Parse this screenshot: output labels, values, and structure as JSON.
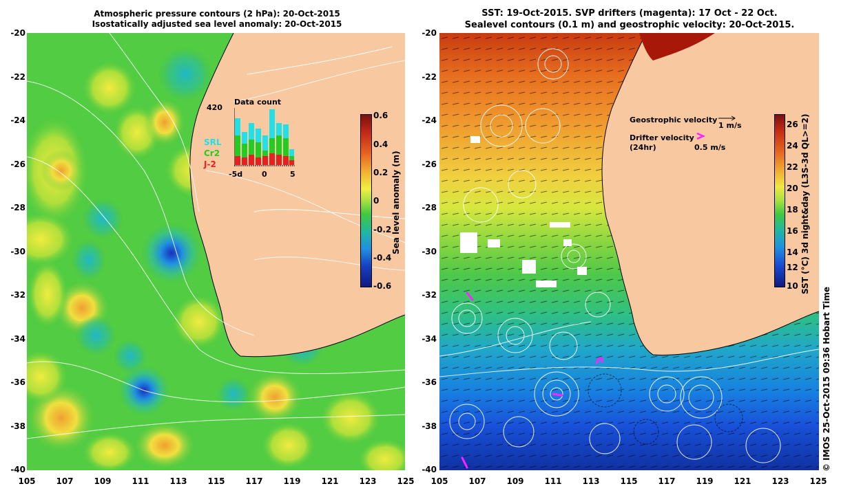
{
  "left_panel": {
    "title_line1": "Atmospheric pressure contours (2 hPa): 20-Oct-2015",
    "title_line2": "Isostatically adjusted sea level anomaly: 20-Oct-2015",
    "y_ticks": [
      "-20",
      "-22",
      "-24",
      "-26",
      "-28",
      "-30",
      "-32",
      "-34",
      "-36",
      "-38",
      "-40"
    ],
    "x_ticks": [
      "105",
      "107",
      "109",
      "111",
      "113",
      "115",
      "117",
      "119",
      "121",
      "123",
      "125"
    ],
    "colorbar_title": "Sea level anomaly (m)",
    "colorbar_ticks": [
      "0.6",
      "0.4",
      "0.2",
      "0",
      "-0.2",
      "-0.4",
      "-0.6"
    ],
    "inset": {
      "title": "Data count",
      "max_label": "420",
      "x_ticks": [
        "-5d",
        "0",
        "5"
      ],
      "legend": [
        {
          "label": "SRL",
          "color": "#22e0e8"
        },
        {
          "label": "Cr2",
          "color": "#22cc22"
        },
        {
          "label": "J-2",
          "color": "#e82020"
        }
      ]
    }
  },
  "right_panel": {
    "title_line1": "SST: 19-Oct-2015. SVP drifters (magenta): 17 Oct - 22 Oct.",
    "title_line2": "Sealevel contours (0.1 m) and geostrophic velocity: 20-Oct-2015.",
    "y_ticks": [
      "-20",
      "-22",
      "-24",
      "-26",
      "-28",
      "-30",
      "-32",
      "-34",
      "-36",
      "-38",
      "-40"
    ],
    "x_ticks": [
      "105",
      "107",
      "109",
      "111",
      "113",
      "115",
      "117",
      "119",
      "121",
      "123",
      "125"
    ],
    "colorbar_title": "SST (°C) 3d night&day (L3S-3d QL>=2)",
    "colorbar_ticks": [
      "26",
      "24",
      "22",
      "20",
      "18",
      "16",
      "14",
      "12",
      "10"
    ],
    "legend": {
      "geostrophic_label": "Geostrophic velocity",
      "geostrophic_scale": "1 m/s",
      "drifter_label": "Drifter velocity",
      "drifter_sub": "(24hr)",
      "drifter_scale": "0.5 m/s"
    }
  },
  "credit": "© IMOS 25-Oct-2015 09:36 Hobart Time",
  "colors": {
    "land": "#f8c8a0",
    "drifter": "#ff22ff"
  }
}
